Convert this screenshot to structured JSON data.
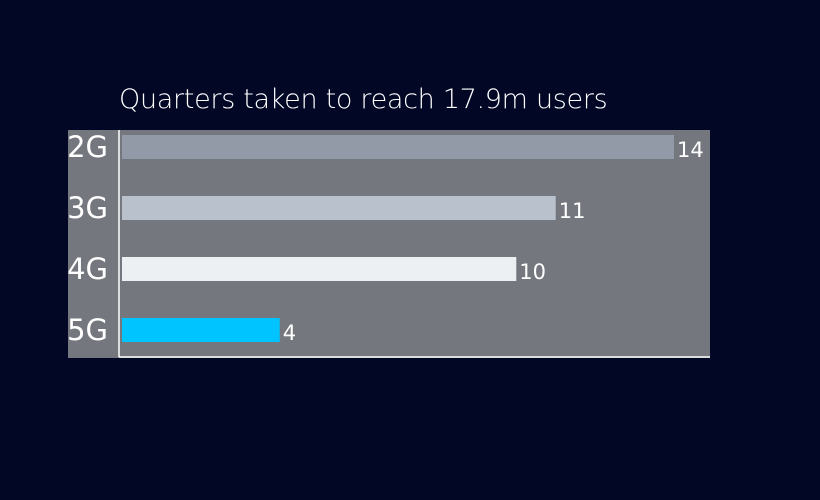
{
  "chart_data": {
    "type": "bar",
    "orientation": "horizontal",
    "title": "Quarters taken to reach 17.9m users",
    "categories": [
      "2G",
      "3G",
      "4G",
      "5G"
    ],
    "values": [
      14,
      11,
      10,
      4
    ],
    "bar_colors": [
      "#919aa6",
      "#b9c2cc",
      "#edf0f2",
      "#00c4ff"
    ],
    "xlim": [
      0,
      15
    ],
    "xlabel": "",
    "ylabel": "",
    "grid": false,
    "legend": "none"
  },
  "colors": {
    "background": "#020726",
    "plot_area": "#75777e",
    "axis": "#ffffff",
    "text": "#ffffff"
  }
}
